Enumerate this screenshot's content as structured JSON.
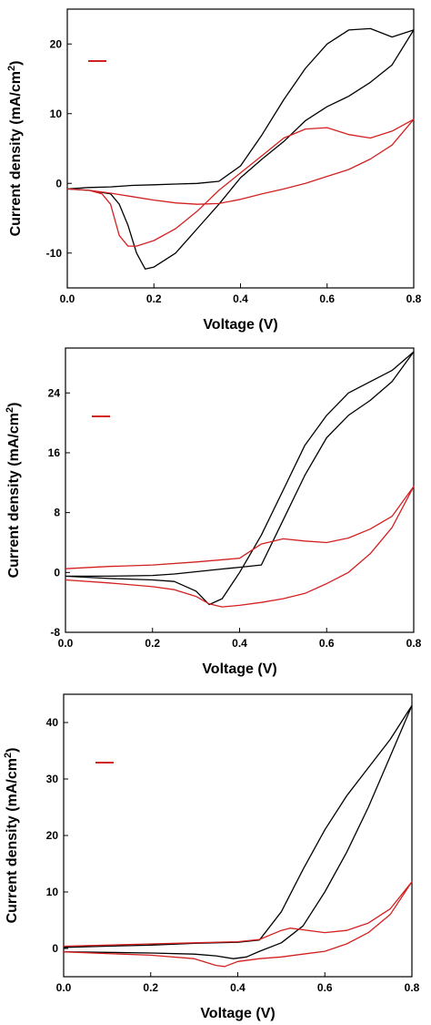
{
  "chart_data": [
    {
      "type": "line",
      "xlabel": "Voltage (V)",
      "ylabel": "Current density (mA/cm",
      "ylabel_sup": "2",
      "ylabel_close": ")",
      "xlim": [
        0.0,
        0.8
      ],
      "ylim": [
        -15,
        25
      ],
      "xticks": [
        0.0,
        0.2,
        0.4,
        0.6,
        0.8
      ],
      "yticks": [
        -10,
        0,
        10,
        20
      ],
      "xtick_labels": [
        "0.0",
        "0.2",
        "0.4",
        "0.6",
        "0.8"
      ],
      "ytick_labels": [
        "-10",
        "0",
        "10",
        "20"
      ],
      "grid": false,
      "legend_position": "top-left",
      "series": [
        {
          "color": "#000000",
          "x": [
            0.0,
            0.05,
            0.1,
            0.15,
            0.2,
            0.25,
            0.3,
            0.35,
            0.4,
            0.45,
            0.5,
            0.55,
            0.6,
            0.65,
            0.7,
            0.75,
            0.8,
            0.8,
            0.75,
            0.7,
            0.65,
            0.6,
            0.55,
            0.5,
            0.45,
            0.4,
            0.35,
            0.3,
            0.25,
            0.2,
            0.18,
            0.16,
            0.14,
            0.12,
            0.1,
            0.05,
            0.0
          ],
          "y": [
            -0.8,
            -0.6,
            -0.5,
            -0.3,
            -0.2,
            -0.1,
            0.0,
            0.3,
            2.5,
            7.0,
            12.0,
            16.5,
            20.0,
            22.0,
            22.2,
            21.0,
            22.0,
            22.0,
            17.0,
            14.5,
            12.5,
            11.0,
            9.0,
            6.0,
            3.5,
            0.8,
            -3.0,
            -6.5,
            -10.0,
            -12.0,
            -12.3,
            -10.0,
            -6.0,
            -3.0,
            -1.5,
            -1.0,
            -0.8
          ]
        },
        {
          "color": "#d32020",
          "x": [
            0.0,
            0.05,
            0.08,
            0.1,
            0.12,
            0.14,
            0.16,
            0.2,
            0.25,
            0.3,
            0.35,
            0.4,
            0.45,
            0.5,
            0.55,
            0.6,
            0.65,
            0.7,
            0.75,
            0.8,
            0.8,
            0.75,
            0.7,
            0.65,
            0.6,
            0.55,
            0.5,
            0.45,
            0.4,
            0.35,
            0.3,
            0.25,
            0.2,
            0.15,
            0.1,
            0.05,
            0.0
          ],
          "y": [
            -0.8,
            -1.0,
            -1.5,
            -3.0,
            -7.5,
            -9.0,
            -9.0,
            -8.2,
            -6.5,
            -4.0,
            -1.0,
            1.5,
            4.0,
            6.5,
            7.8,
            8.0,
            7.0,
            6.5,
            7.5,
            9.2,
            9.2,
            5.5,
            3.5,
            2.0,
            1.0,
            0.0,
            -0.8,
            -1.5,
            -2.3,
            -2.9,
            -3.0,
            -2.8,
            -2.4,
            -1.9,
            -1.4,
            -1.0,
            -0.8
          ]
        }
      ]
    },
    {
      "type": "line",
      "xlabel": "Voltage (V)",
      "ylabel": "Current density (mA/cm",
      "ylabel_sup": "2",
      "ylabel_close": ")",
      "xlim": [
        0.0,
        0.8
      ],
      "ylim": [
        -8,
        30
      ],
      "xticks": [
        0.0,
        0.2,
        0.4,
        0.6,
        0.8
      ],
      "yticks": [
        -8,
        0,
        8,
        16,
        24
      ],
      "xtick_labels": [
        "0.0",
        "0.2",
        "0.4",
        "0.6",
        "0.8"
      ],
      "ytick_labels": [
        "-8",
        "0",
        "8",
        "16",
        "24"
      ],
      "grid": false,
      "legend_position": "top-left",
      "series": [
        {
          "color": "#000000",
          "x": [
            0.0,
            0.1,
            0.2,
            0.25,
            0.3,
            0.35,
            0.4,
            0.45,
            0.5,
            0.55,
            0.6,
            0.65,
            0.7,
            0.75,
            0.8,
            0.8,
            0.75,
            0.7,
            0.65,
            0.6,
            0.55,
            0.5,
            0.45,
            0.42,
            0.4,
            0.36,
            0.33,
            0.3,
            0.25,
            0.2,
            0.1,
            0.0
          ],
          "y": [
            -0.5,
            -0.5,
            -0.4,
            -0.2,
            0.1,
            0.4,
            0.7,
            1.0,
            7.0,
            13.0,
            18.0,
            21.0,
            23.0,
            25.5,
            29.5,
            29.5,
            27.0,
            25.5,
            24.0,
            21.0,
            17.0,
            11.0,
            5.0,
            2.0,
            0.0,
            -3.5,
            -4.3,
            -2.5,
            -1.2,
            -1.0,
            -0.8,
            -0.5
          ]
        },
        {
          "color": "#d32020",
          "x": [
            0.0,
            0.1,
            0.2,
            0.3,
            0.4,
            0.45,
            0.5,
            0.55,
            0.6,
            0.65,
            0.7,
            0.75,
            0.8,
            0.8,
            0.75,
            0.7,
            0.65,
            0.6,
            0.55,
            0.5,
            0.45,
            0.4,
            0.36,
            0.33,
            0.3,
            0.25,
            0.2,
            0.1,
            0.0
          ],
          "y": [
            0.5,
            0.8,
            1.0,
            1.4,
            1.9,
            3.8,
            4.5,
            4.2,
            4.0,
            4.6,
            5.8,
            7.5,
            11.5,
            11.5,
            6.0,
            2.5,
            0.0,
            -1.5,
            -2.8,
            -3.5,
            -4.0,
            -4.4,
            -4.6,
            -4.2,
            -3.2,
            -2.3,
            -1.9,
            -1.4,
            -1.0
          ]
        }
      ]
    },
    {
      "type": "line",
      "xlabel": "Voltage (V)",
      "ylabel": "Current density (mA/cm",
      "ylabel_sup": "2",
      "ylabel_close": ")",
      "xlim": [
        0.0,
        0.8
      ],
      "ylim": [
        -5,
        45
      ],
      "xticks": [
        0.0,
        0.2,
        0.4,
        0.6,
        0.8
      ],
      "yticks": [
        0,
        10,
        20,
        30,
        40
      ],
      "xtick_labels": [
        "0.0",
        "0.2",
        "0.4",
        "0.6",
        "0.8"
      ],
      "ytick_labels": [
        "0",
        "10",
        "20",
        "30",
        "40"
      ],
      "grid": false,
      "legend_position": "top-left",
      "series": [
        {
          "color": "#000000",
          "x": [
            0.0,
            0.1,
            0.2,
            0.3,
            0.4,
            0.45,
            0.5,
            0.55,
            0.6,
            0.65,
            0.7,
            0.75,
            0.8,
            0.8,
            0.75,
            0.7,
            0.65,
            0.6,
            0.55,
            0.5,
            0.45,
            0.42,
            0.39,
            0.35,
            0.3,
            0.2,
            0.1,
            0.0
          ],
          "y": [
            0.2,
            0.4,
            0.6,
            0.9,
            1.1,
            1.5,
            6.5,
            14.0,
            21.0,
            27.0,
            32.0,
            37.0,
            43.0,
            43.0,
            34.0,
            25.0,
            17.0,
            10.0,
            4.0,
            1.0,
            -0.5,
            -1.5,
            -1.8,
            -1.3,
            -1.0,
            -0.8,
            -0.7,
            -0.6
          ]
        },
        {
          "color": "#d32020",
          "x": [
            0.0,
            0.1,
            0.2,
            0.3,
            0.4,
            0.45,
            0.5,
            0.52,
            0.55,
            0.6,
            0.65,
            0.7,
            0.75,
            0.8,
            0.8,
            0.75,
            0.7,
            0.65,
            0.6,
            0.55,
            0.5,
            0.45,
            0.4,
            0.37,
            0.35,
            0.3,
            0.2,
            0.1,
            0.0
          ],
          "y": [
            0.4,
            0.6,
            0.8,
            1.0,
            1.2,
            1.6,
            3.2,
            3.6,
            3.3,
            2.8,
            3.2,
            4.5,
            7.0,
            11.8,
            11.8,
            6.0,
            2.8,
            0.8,
            -0.5,
            -1.0,
            -1.5,
            -1.8,
            -2.3,
            -3.2,
            -3.0,
            -1.8,
            -1.2,
            -0.9,
            -0.6
          ]
        }
      ]
    }
  ]
}
